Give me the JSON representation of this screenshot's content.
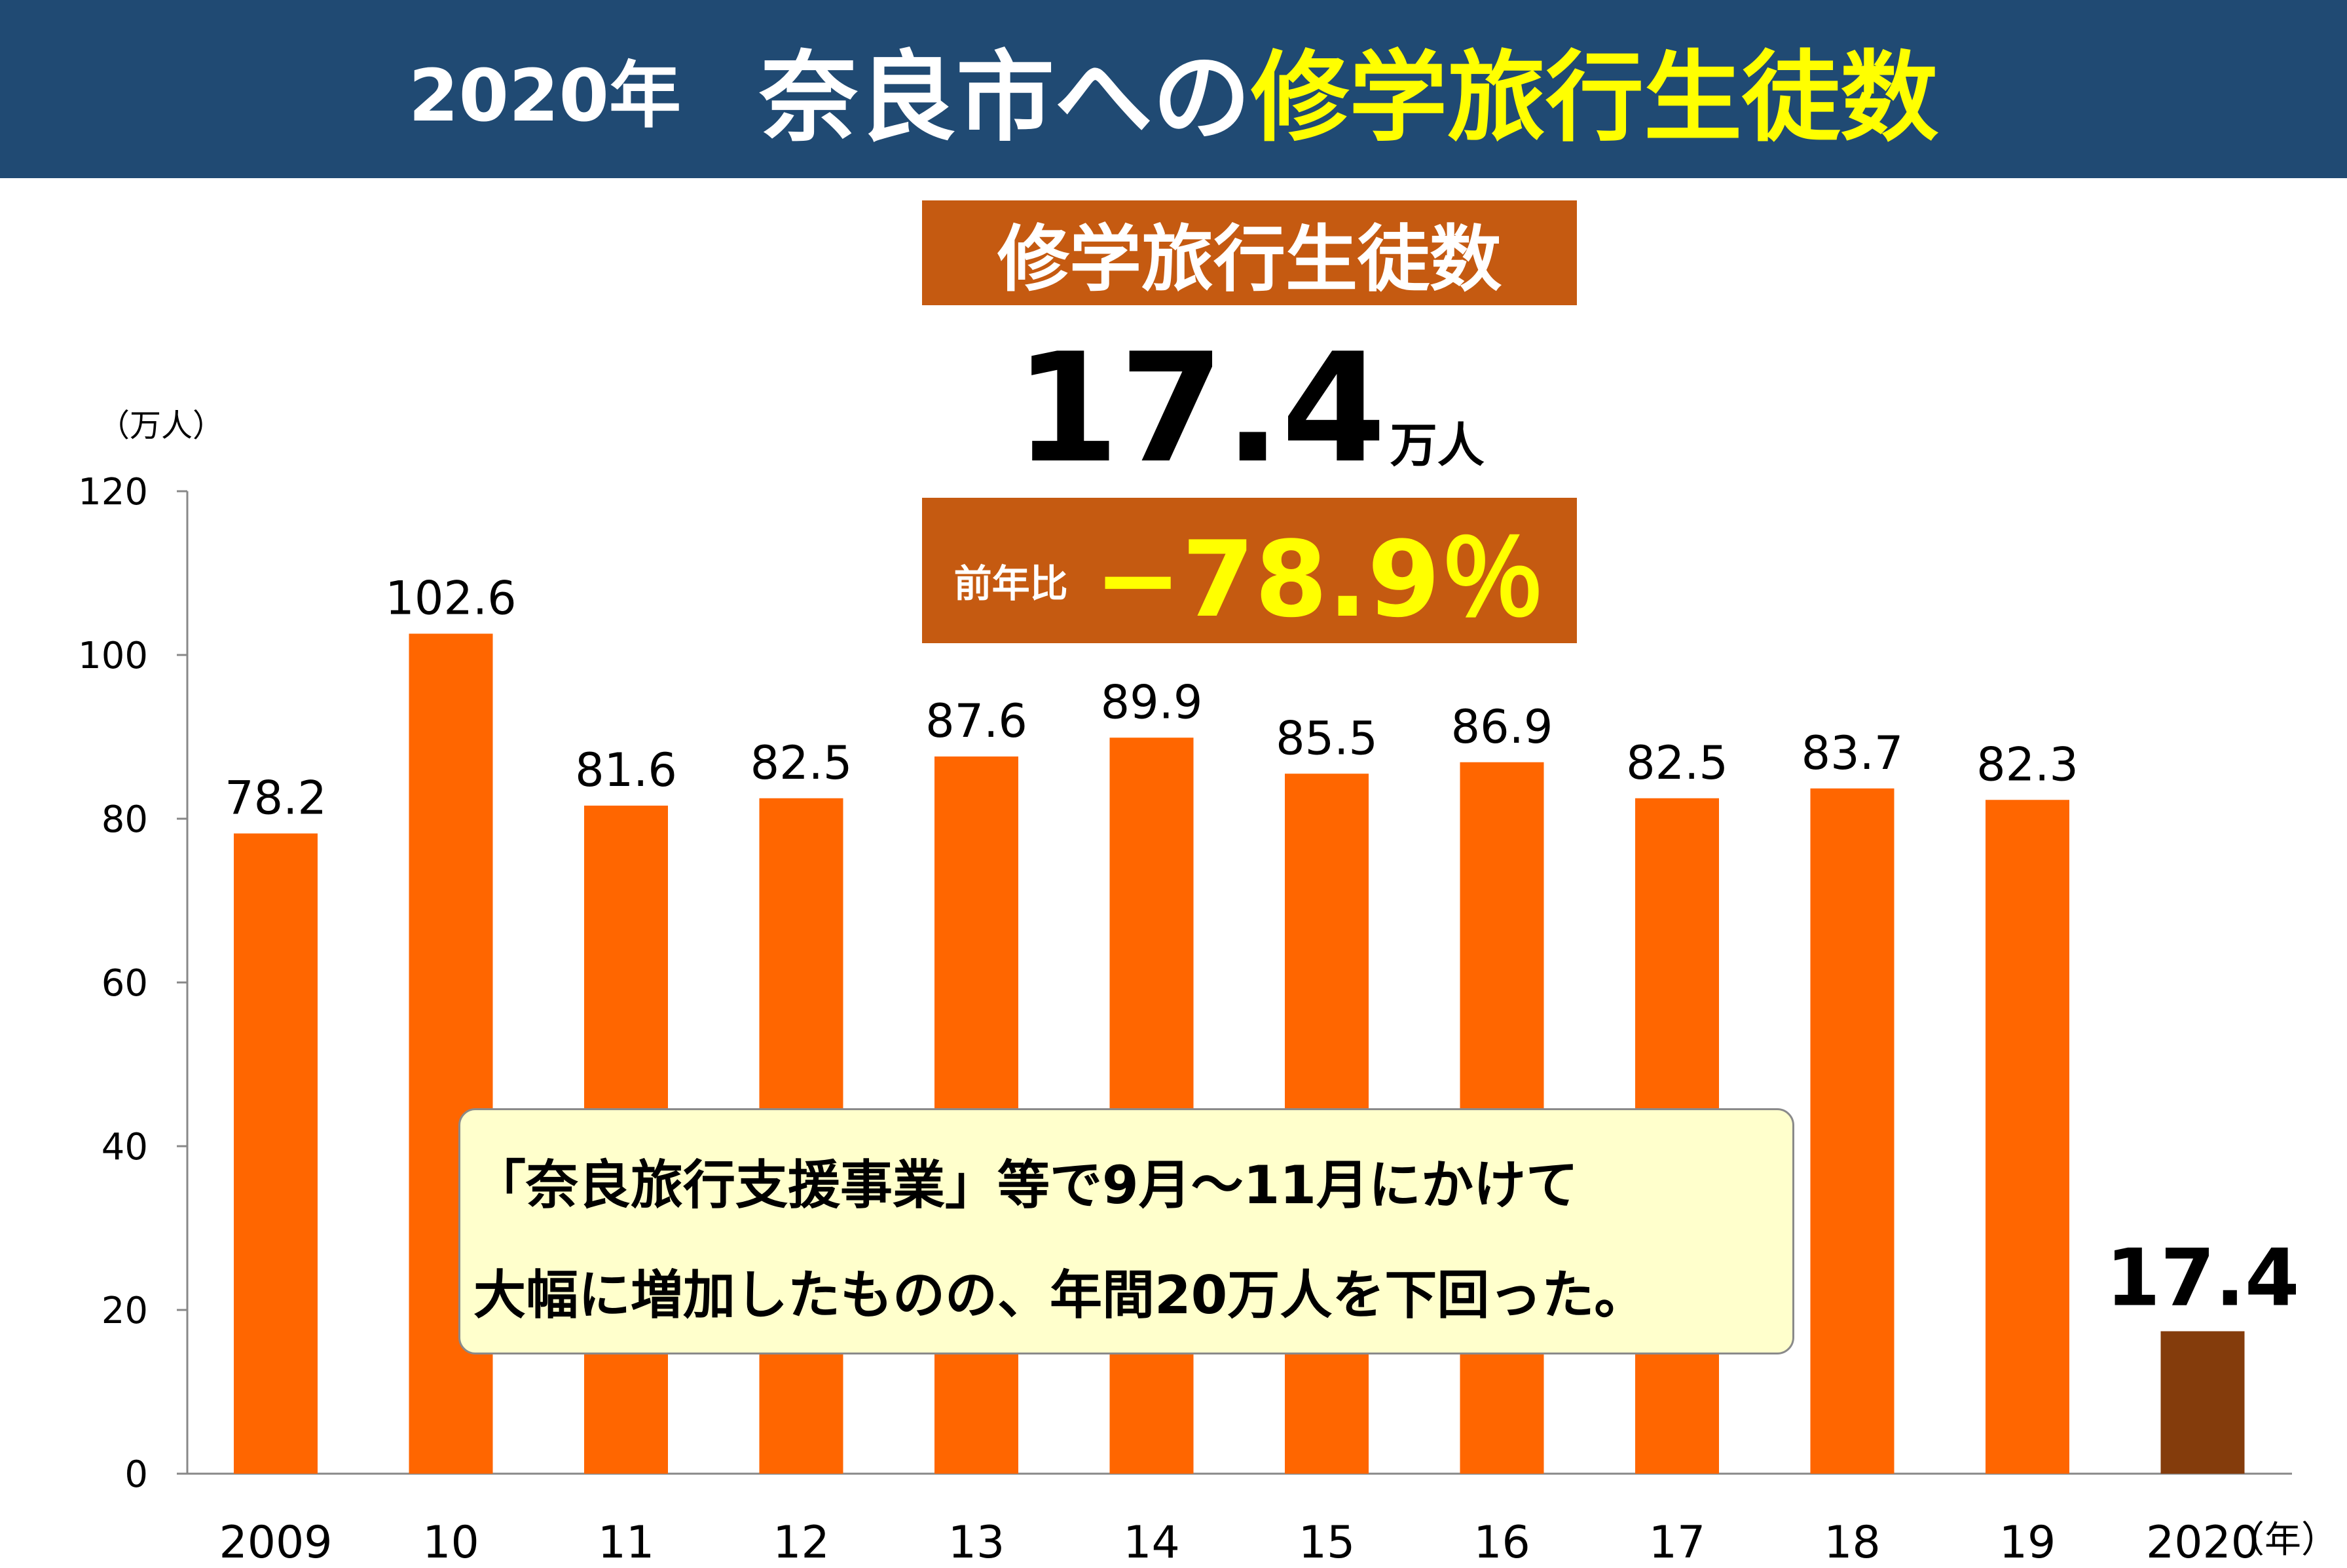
{
  "header": {
    "year": "2020年",
    "title_main": "奈良市への",
    "title_accent": "修学旅行生徒数"
  },
  "metric": {
    "label": "修学旅行生徒数",
    "value": "17.4",
    "unit": "万人",
    "yoy_label": "前年比",
    "yoy_value": "−78.9％"
  },
  "callout": {
    "line1": "「奈良旅行支援事業」等で9月～11月にかけて",
    "line2": "大幅に増加したものの、年間20万人を下回った。"
  },
  "colors": {
    "header_bg": "#204a73",
    "accent_yellow": "#ffff00",
    "box_bg": "#c55a11",
    "bar": "#ff6600",
    "bar_highlight": "#843c0c",
    "callout_bg": "#ffffcc"
  },
  "chart_data": {
    "type": "bar",
    "title": "",
    "ylabel": "（万人）",
    "xlabel": "（年）",
    "categories": [
      "2009",
      "10",
      "11",
      "12",
      "13",
      "14",
      "15",
      "16",
      "17",
      "18",
      "19",
      "2020"
    ],
    "values": [
      78.2,
      102.6,
      81.6,
      82.5,
      87.6,
      89.9,
      85.5,
      86.9,
      82.5,
      83.7,
      82.3,
      17.4
    ],
    "value_labels": [
      "78.2",
      "102.6",
      "81.6",
      "82.5",
      "87.6",
      "89.9",
      "85.5",
      "86.9",
      "82.5",
      "83.7",
      "82.3",
      "17.4"
    ],
    "highlight_index": 11,
    "ylim": [
      0,
      120
    ],
    "yticks": [
      0,
      20,
      40,
      60,
      80,
      100,
      120
    ],
    "grid": false,
    "legend": "none"
  }
}
